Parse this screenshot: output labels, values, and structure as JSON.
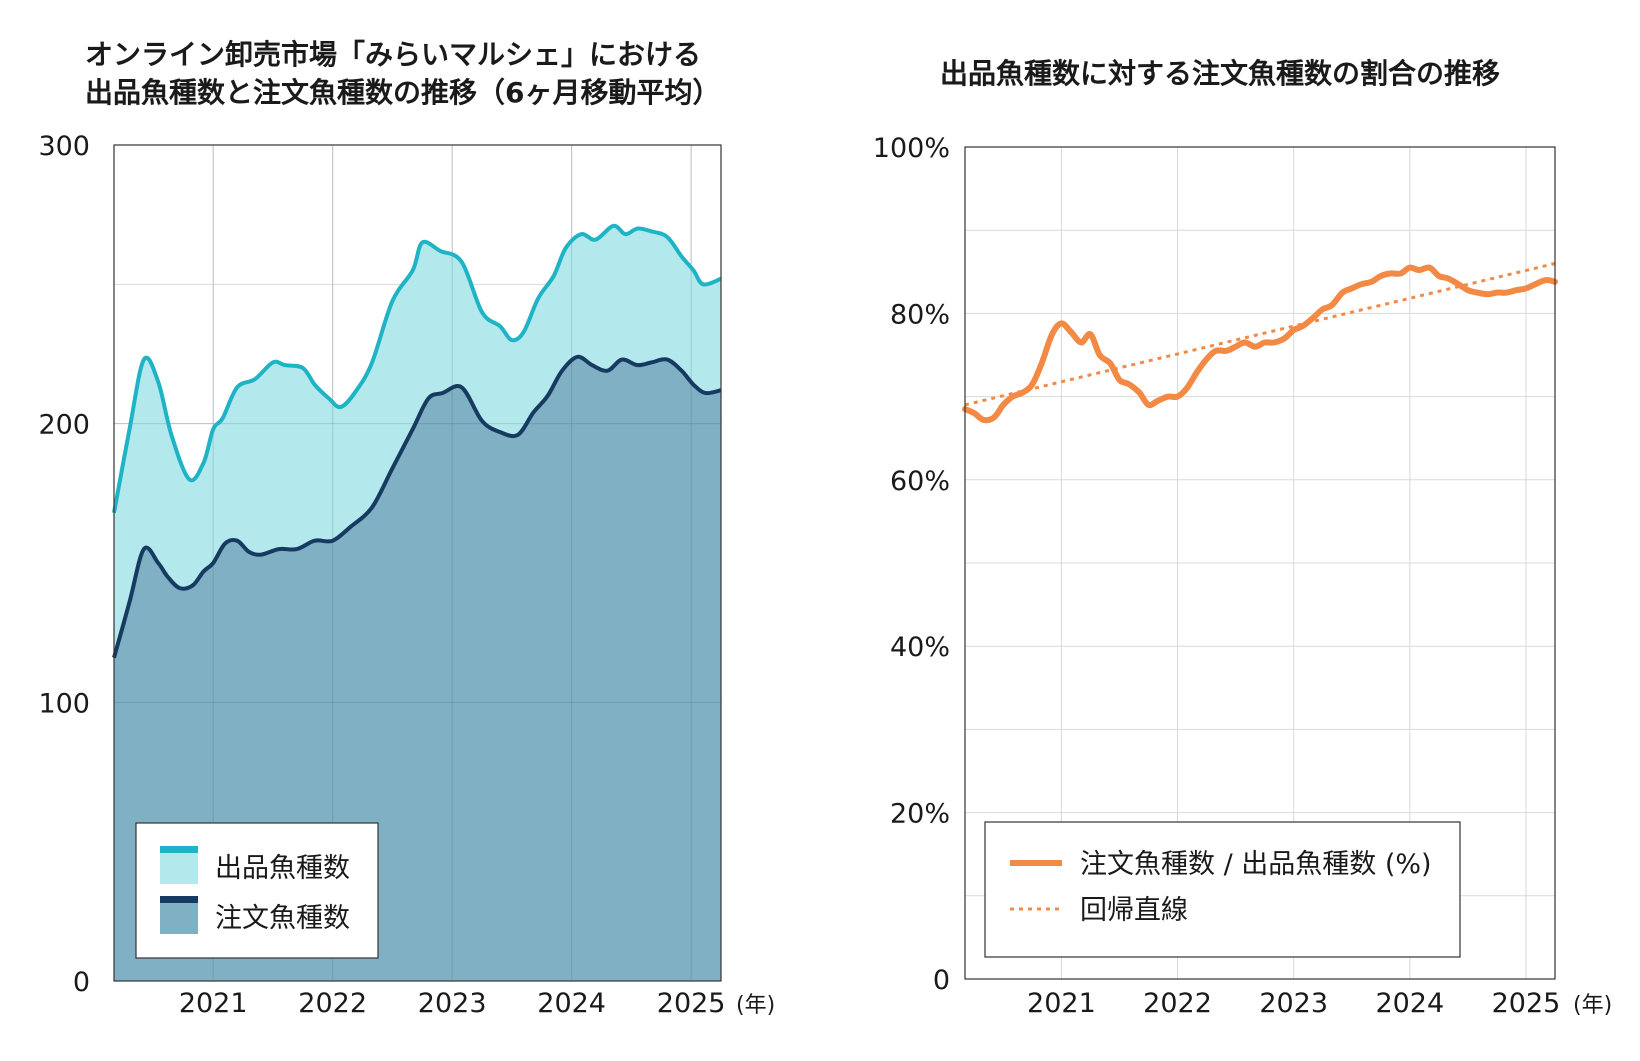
{
  "chart_data": [
    {
      "type": "area",
      "title_lines": [
        "オンライン卸売市場「みらいマルシェ」における",
        "出品魚種数と注文魚種数の推移（6ヶ月移動平均）"
      ],
      "xlabel": "(年)",
      "x_ticks": [
        2021,
        2022,
        2023,
        2024,
        2025
      ],
      "y_ticks": [
        0,
        100,
        200,
        300
      ],
      "xlim": [
        2020.17,
        2025.25
      ],
      "ylim": [
        0,
        300
      ],
      "grid": true,
      "legend": "bottom-left",
      "colors": {
        "listed_line": "#1fb3c6",
        "listed_fill": "#b3e8ec",
        "ordered_line": "#163a60",
        "ordered_fill": "#7fb0c3"
      },
      "series": [
        {
          "name": "出品魚種数",
          "points": [
            [
              2020.17,
              168
            ],
            [
              2020.3,
              198
            ],
            [
              2020.42,
              223
            ],
            [
              2020.54,
              215
            ],
            [
              2020.65,
              196
            ],
            [
              2020.8,
              180
            ],
            [
              2020.92,
              186
            ],
            [
              2021.0,
              198
            ],
            [
              2021.08,
              202
            ],
            [
              2021.2,
              213
            ],
            [
              2021.35,
              216
            ],
            [
              2021.5,
              222
            ],
            [
              2021.6,
              221
            ],
            [
              2021.75,
              220
            ],
            [
              2021.85,
              214
            ],
            [
              2021.97,
              209
            ],
            [
              2022.07,
              206
            ],
            [
              2022.2,
              212
            ],
            [
              2022.33,
              222
            ],
            [
              2022.5,
              244
            ],
            [
              2022.67,
              255
            ],
            [
              2022.75,
              265
            ],
            [
              2022.9,
              262
            ],
            [
              2023.08,
              258
            ],
            [
              2023.25,
              240
            ],
            [
              2023.4,
              235
            ],
            [
              2023.5,
              230
            ],
            [
              2023.6,
              233
            ],
            [
              2023.72,
              245
            ],
            [
              2023.85,
              253
            ],
            [
              2023.95,
              263
            ],
            [
              2024.08,
              268
            ],
            [
              2024.2,
              266
            ],
            [
              2024.35,
              271
            ],
            [
              2024.45,
              268
            ],
            [
              2024.55,
              270
            ],
            [
              2024.67,
              269
            ],
            [
              2024.8,
              267
            ],
            [
              2024.92,
              260
            ],
            [
              2025.02,
              255
            ],
            [
              2025.1,
              250
            ],
            [
              2025.25,
              252
            ]
          ]
        },
        {
          "name": "注文魚種数",
          "points": [
            [
              2020.17,
              116
            ],
            [
              2020.3,
              136
            ],
            [
              2020.42,
              155
            ],
            [
              2020.54,
              150
            ],
            [
              2020.62,
              145
            ],
            [
              2020.72,
              141
            ],
            [
              2020.83,
              142
            ],
            [
              2020.92,
              147
            ],
            [
              2021.0,
              150
            ],
            [
              2021.1,
              157
            ],
            [
              2021.2,
              158
            ],
            [
              2021.3,
              154
            ],
            [
              2021.4,
              153
            ],
            [
              2021.55,
              155
            ],
            [
              2021.7,
              155
            ],
            [
              2021.85,
              158
            ],
            [
              2022.0,
              158
            ],
            [
              2022.15,
              163
            ],
            [
              2022.33,
              170
            ],
            [
              2022.5,
              184
            ],
            [
              2022.67,
              198
            ],
            [
              2022.8,
              209
            ],
            [
              2022.92,
              211
            ],
            [
              2023.08,
              213
            ],
            [
              2023.25,
              201
            ],
            [
              2023.4,
              197
            ],
            [
              2023.55,
              196
            ],
            [
              2023.68,
              204
            ],
            [
              2023.8,
              210
            ],
            [
              2023.92,
              219
            ],
            [
              2024.05,
              224
            ],
            [
              2024.17,
              221
            ],
            [
              2024.3,
              219
            ],
            [
              2024.42,
              223
            ],
            [
              2024.55,
              221
            ],
            [
              2024.67,
              222
            ],
            [
              2024.8,
              223
            ],
            [
              2024.92,
              219
            ],
            [
              2025.02,
              214
            ],
            [
              2025.12,
              211
            ],
            [
              2025.25,
              212
            ]
          ]
        }
      ]
    },
    {
      "type": "line",
      "title": "出品魚種数に対する注文魚種数の割合の推移",
      "xlabel": "(年)",
      "x_ticks": [
        2021,
        2022,
        2023,
        2024,
        2025
      ],
      "y_ticks": [
        0,
        20,
        40,
        60,
        80,
        100
      ],
      "y_tick_labels": [
        "0",
        "20%",
        "40%",
        "60%",
        "80%",
        "100%"
      ],
      "xlim": [
        2020.17,
        2025.25
      ],
      "ylim": [
        0,
        100
      ],
      "grid": true,
      "legend": "bottom-left",
      "colors": {
        "ratio": "#f28a45",
        "regression": "#f28a45"
      },
      "series": [
        {
          "name": "注文魚種数 / 出品魚種数 (%)",
          "style": "solid",
          "points": [
            [
              2020.17,
              68.5
            ],
            [
              2020.25,
              68
            ],
            [
              2020.33,
              67.2
            ],
            [
              2020.42,
              67.5
            ],
            [
              2020.5,
              69
            ],
            [
              2020.58,
              70
            ],
            [
              2020.67,
              70.5
            ],
            [
              2020.75,
              71.5
            ],
            [
              2020.83,
              74
            ],
            [
              2020.92,
              77.5
            ],
            [
              2021.0,
              78.8
            ],
            [
              2021.08,
              77.8
            ],
            [
              2021.17,
              76.5
            ],
            [
              2021.25,
              77.5
            ],
            [
              2021.33,
              75
            ],
            [
              2021.42,
              74
            ],
            [
              2021.5,
              72
            ],
            [
              2021.58,
              71.5
            ],
            [
              2021.67,
              70.5
            ],
            [
              2021.75,
              69
            ],
            [
              2021.83,
              69.5
            ],
            [
              2021.92,
              70
            ],
            [
              2022.0,
              70
            ],
            [
              2022.08,
              71
            ],
            [
              2022.17,
              73
            ],
            [
              2022.25,
              74.5
            ],
            [
              2022.33,
              75.5
            ],
            [
              2022.42,
              75.5
            ],
            [
              2022.5,
              76
            ],
            [
              2022.58,
              76.5
            ],
            [
              2022.67,
              76
            ],
            [
              2022.75,
              76.5
            ],
            [
              2022.83,
              76.5
            ],
            [
              2022.92,
              77
            ],
            [
              2023.0,
              78
            ],
            [
              2023.08,
              78.5
            ],
            [
              2023.17,
              79.5
            ],
            [
              2023.25,
              80.5
            ],
            [
              2023.33,
              81
            ],
            [
              2023.42,
              82.5
            ],
            [
              2023.5,
              83
            ],
            [
              2023.58,
              83.5
            ],
            [
              2023.67,
              83.8
            ],
            [
              2023.75,
              84.5
            ],
            [
              2023.83,
              84.8
            ],
            [
              2023.92,
              84.8
            ],
            [
              2024.0,
              85.5
            ],
            [
              2024.08,
              85.2
            ],
            [
              2024.17,
              85.5
            ],
            [
              2024.25,
              84.5
            ],
            [
              2024.33,
              84.2
            ],
            [
              2024.42,
              83.5
            ],
            [
              2024.5,
              82.8
            ],
            [
              2024.58,
              82.5
            ],
            [
              2024.67,
              82.3
            ],
            [
              2024.75,
              82.5
            ],
            [
              2024.83,
              82.5
            ],
            [
              2024.92,
              82.8
            ],
            [
              2025.0,
              83
            ],
            [
              2025.08,
              83.5
            ],
            [
              2025.17,
              84
            ],
            [
              2025.25,
              83.8
            ]
          ]
        },
        {
          "name": "回帰直線",
          "style": "dotted",
          "points": [
            [
              2020.17,
              69
            ],
            [
              2025.25,
              86
            ]
          ]
        }
      ]
    }
  ]
}
